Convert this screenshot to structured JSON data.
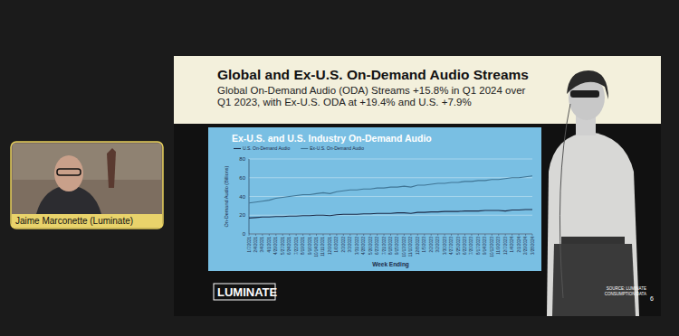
{
  "participant": {
    "name": "Jaime Marconette (Luminate)"
  },
  "slide": {
    "title": "Global and Ex-U.S. On-Demand Audio Streams",
    "subtitle": [
      "Global On-Demand Audio (ODA) Streams +15.8% in Q1 2024 over",
      "Q1 2023, with Ex-U.S. ODA at +19.4% and U.S. +7.9%"
    ],
    "logo": "LUMINATE",
    "source": [
      "SOURCE: LUMINATE",
      "CONSUMPTION DATA"
    ],
    "page": 6
  },
  "chart_data": {
    "type": "line",
    "title": "Ex-U.S. and U.S. Industry On-Demand Audio",
    "x_label": "Week Ending",
    "y_label": "On-Demand Audio (Billions)",
    "categories": [
      "1/7/2021",
      "2/4/2021",
      "3/4/2021",
      "4/1/2021",
      "4/29/2021",
      "5/27/2021",
      "6/24/2021",
      "7/22/2021",
      "8/19/2021",
      "9/16/2021",
      "10/14/2021",
      "11/11/2021",
      "12/9/2021",
      "1/6/2022",
      "2/3/2022",
      "3/3/2022",
      "3/31/2022",
      "4/28/2022",
      "5/26/2022",
      "6/23/2022",
      "7/21/2022",
      "8/18/2022",
      "9/15/2022",
      "10/13/2022",
      "11/10/2022",
      "12/8/2022",
      "1/5/2023",
      "2/2/2023",
      "3/2/2023",
      "3/30/2023",
      "4/27/2023",
      "5/25/2023",
      "6/22/2023",
      "7/20/2023",
      "8/17/2023",
      "9/14/2023",
      "10/12/2023",
      "11/9/2023",
      "12/7/2023",
      "1/4/2024",
      "2/1/2024",
      "2/29/2024",
      "3/28/2024"
    ],
    "series": [
      {
        "name": "U.S. On-Demand Audio",
        "color": "#1c2b48",
        "values": [
          17,
          17.5,
          18,
          18,
          18.5,
          18.5,
          19,
          19,
          19.5,
          19.5,
          20,
          20,
          19.5,
          20.5,
          21,
          21,
          21,
          21.5,
          21.5,
          22,
          22,
          22,
          22.5,
          22.5,
          22,
          23,
          23,
          23.5,
          23.5,
          24,
          24,
          24,
          24.5,
          24.5,
          24.5,
          25,
          25,
          25,
          24.5,
          25.5,
          25.5,
          26,
          26
        ]
      },
      {
        "name": "Ex-U.S. On-Demand Audio",
        "color": "#3f7595",
        "values": [
          33,
          34,
          35,
          36,
          38,
          39,
          40,
          41,
          42,
          42,
          43,
          44,
          43,
          45,
          46,
          47,
          47,
          48,
          48,
          49,
          49,
          50,
          50,
          51,
          50,
          52,
          52,
          53,
          54,
          54,
          55,
          55,
          56,
          56,
          57,
          57,
          58,
          58,
          59,
          60,
          60,
          61,
          62
        ]
      }
    ],
    "ylim": [
      0,
      80
    ],
    "yticks": [
      0,
      20,
      40,
      60,
      80
    ],
    "grid": true,
    "legend": "top-left"
  }
}
